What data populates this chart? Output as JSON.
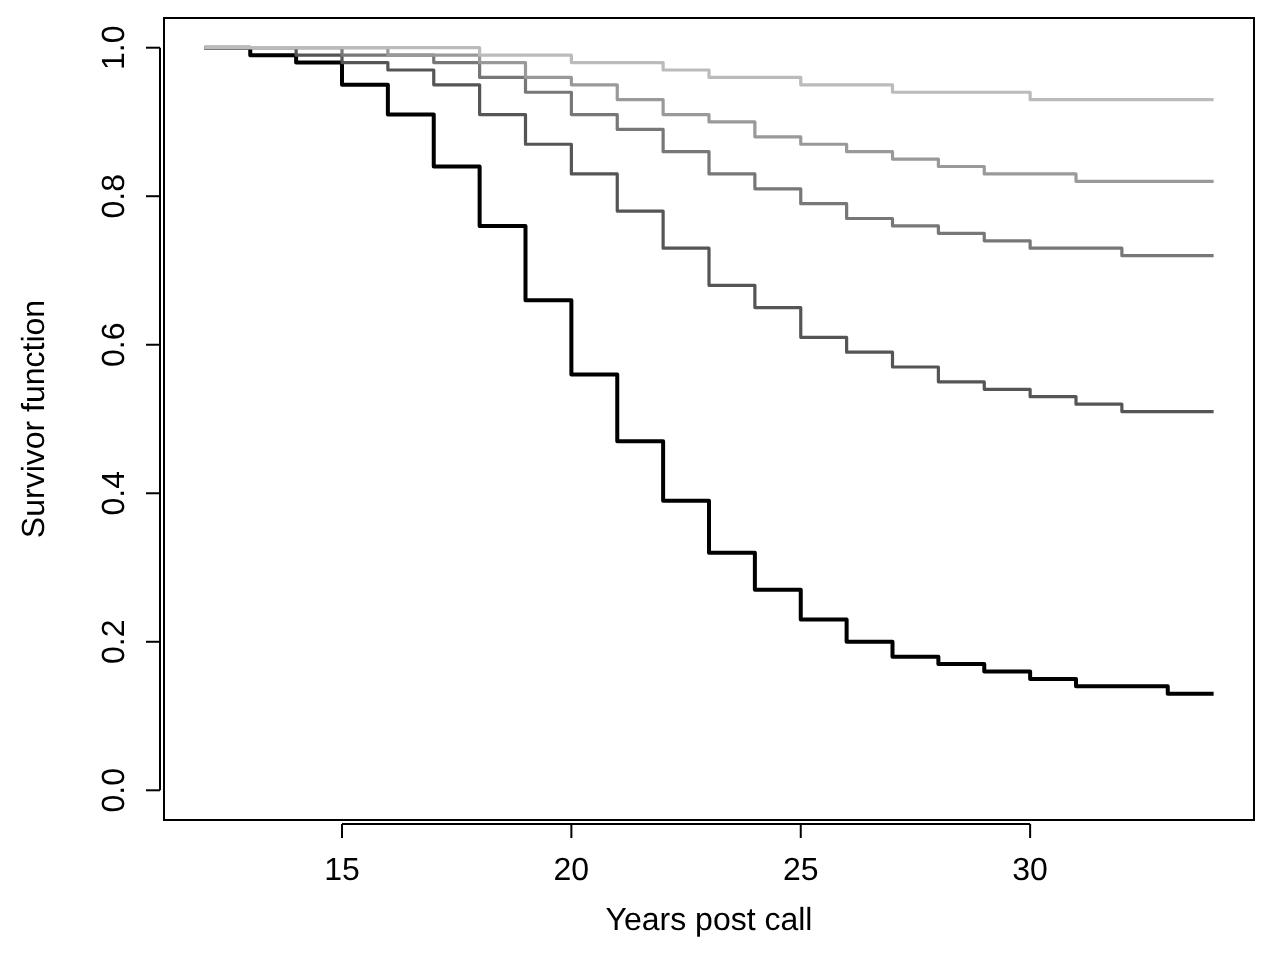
{
  "chart_data": {
    "type": "step",
    "xlabel": "Years post call",
    "ylabel": "Survivor function",
    "x": [
      12,
      13,
      14,
      15,
      16,
      17,
      18,
      19,
      20,
      21,
      22,
      23,
      24,
      25,
      26,
      27,
      28,
      29,
      30,
      31,
      32,
      33,
      34
    ],
    "series": [
      {
        "color": "#000000",
        "values": [
          1,
          0.99,
          0.98,
          0.95,
          0.91,
          0.84,
          0.76,
          0.66,
          0.56,
          0.47,
          0.39,
          0.32,
          0.27,
          0.23,
          0.2,
          0.18,
          0.17,
          0.16,
          0.15,
          0.14,
          0.14,
          0.13,
          0.13
        ]
      },
      {
        "color": "#555555",
        "values": [
          1,
          1,
          0.99,
          0.98,
          0.97,
          0.95,
          0.91,
          0.87,
          0.83,
          0.78,
          0.73,
          0.68,
          0.65,
          0.61,
          0.59,
          0.57,
          0.55,
          0.54,
          0.53,
          0.52,
          0.51,
          0.51,
          0.51
        ]
      },
      {
        "color": "#777777",
        "values": [
          1,
          1,
          1,
          0.99,
          0.99,
          0.98,
          0.96,
          0.94,
          0.91,
          0.89,
          0.86,
          0.83,
          0.81,
          0.79,
          0.77,
          0.76,
          0.75,
          0.74,
          0.73,
          0.73,
          0.72,
          0.72,
          0.72
        ]
      },
      {
        "color": "#999999",
        "values": [
          1,
          1,
          1,
          1,
          0.99,
          0.99,
          0.98,
          0.96,
          0.95,
          0.93,
          0.91,
          0.9,
          0.88,
          0.87,
          0.86,
          0.85,
          0.84,
          0.83,
          0.83,
          0.82,
          0.82,
          0.82,
          0.82
        ]
      },
      {
        "color": "#bbbbbb",
        "values": [
          1,
          1,
          1,
          1,
          1,
          1,
          0.99,
          0.99,
          0.98,
          0.98,
          0.97,
          0.96,
          0.96,
          0.95,
          0.95,
          0.94,
          0.94,
          0.94,
          0.93,
          0.93,
          0.93,
          0.93,
          0.93
        ]
      }
    ],
    "xlim": [
      11.12,
      34.88
    ],
    "xticks": [
      15,
      20,
      25,
      30
    ],
    "ylim": [
      -0.04,
      1.04
    ],
    "yticks": [
      {
        "value": 0,
        "label": "0.0"
      },
      {
        "value": 0.2,
        "label": "0.2"
      },
      {
        "value": 0.4,
        "label": "0.4"
      },
      {
        "value": 0.6,
        "label": "0.6"
      },
      {
        "value": 0.8,
        "label": "0.8"
      },
      {
        "value": 1,
        "label": "1.0"
      }
    ]
  }
}
